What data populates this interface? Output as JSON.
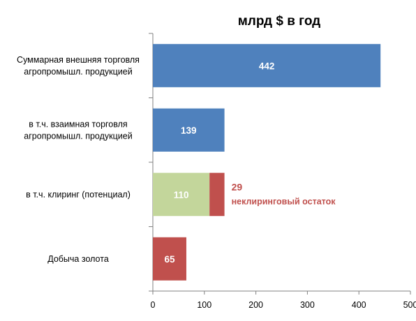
{
  "chart_data": {
    "type": "bar",
    "orientation": "horizontal",
    "stacked": true,
    "title": "млрд $ в год",
    "xlabel": "",
    "ylabel": "",
    "xlim": [
      0,
      500
    ],
    "x_ticks": [
      "0",
      "100",
      "200",
      "300",
      "400",
      "500"
    ],
    "grid": false,
    "legend": "none",
    "categories": [
      [
        "Суммарная внешняя торговля",
        "агропромышл. продукцией"
      ],
      [
        "в т.ч. взаимная торговля",
        "агропромышл. продукцией"
      ],
      [
        "в т.ч.  клиринг (потенциал)"
      ],
      [
        "Добыча золота"
      ]
    ],
    "bars": [
      {
        "segments": [
          {
            "value": 442,
            "label": "442",
            "color": "#4f81bd"
          }
        ]
      },
      {
        "segments": [
          {
            "value": 139,
            "label": "139",
            "color": "#4f81bd"
          }
        ]
      },
      {
        "segments": [
          {
            "value": 110,
            "label": "110",
            "color": "#c3d69b"
          },
          {
            "value": 29,
            "label": "",
            "color": "#c0504d"
          }
        ]
      },
      {
        "segments": [
          {
            "value": 65,
            "label": "65",
            "color": "#c0504d"
          }
        ]
      }
    ],
    "annotations": [
      {
        "category_index": 2,
        "lines": [
          "29",
          "неклиринговый остаток"
        ],
        "color": "#c0504d"
      }
    ]
  }
}
